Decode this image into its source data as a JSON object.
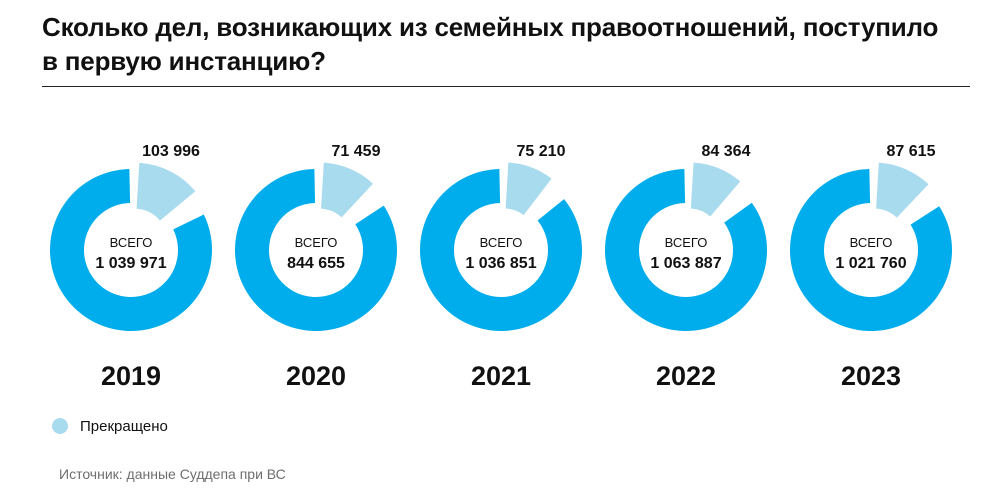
{
  "title": "Сколько дел, возникающих из семейных правоотношений, поступило в первую инстанцию?",
  "source": "Источник: данные Суддепа при ВС",
  "legend": {
    "label": "Прекращено"
  },
  "colors": {
    "total": "#00adec",
    "terminated": "#a9dbee",
    "text": "#111111",
    "rule": "#222222",
    "source": "#6e6e6e"
  },
  "chart_data": {
    "type": "pie",
    "title": "Сколько дел, возникающих из семейных правоотношений, поступило в первую инстанцию?",
    "center_label": "ВСЕГО",
    "legend": [
      "Прекращено"
    ],
    "categories": [
      "2019",
      "2020",
      "2021",
      "2022",
      "2023"
    ],
    "series": [
      {
        "name": "ВСЕГО",
        "values": [
          1039971,
          844655,
          1036851,
          1063887,
          1021760
        ],
        "labels": [
          "1 039 971",
          "844 655",
          "1 036 851",
          "1 063 887",
          "1 021 760"
        ]
      },
      {
        "name": "Прекращено",
        "values": [
          103996,
          71459,
          75210,
          84364,
          87615
        ],
        "labels": [
          "103 996",
          "71 459",
          "75 210",
          "84 364",
          "87 615"
        ]
      }
    ],
    "exploded_slice": "Прекращено"
  }
}
